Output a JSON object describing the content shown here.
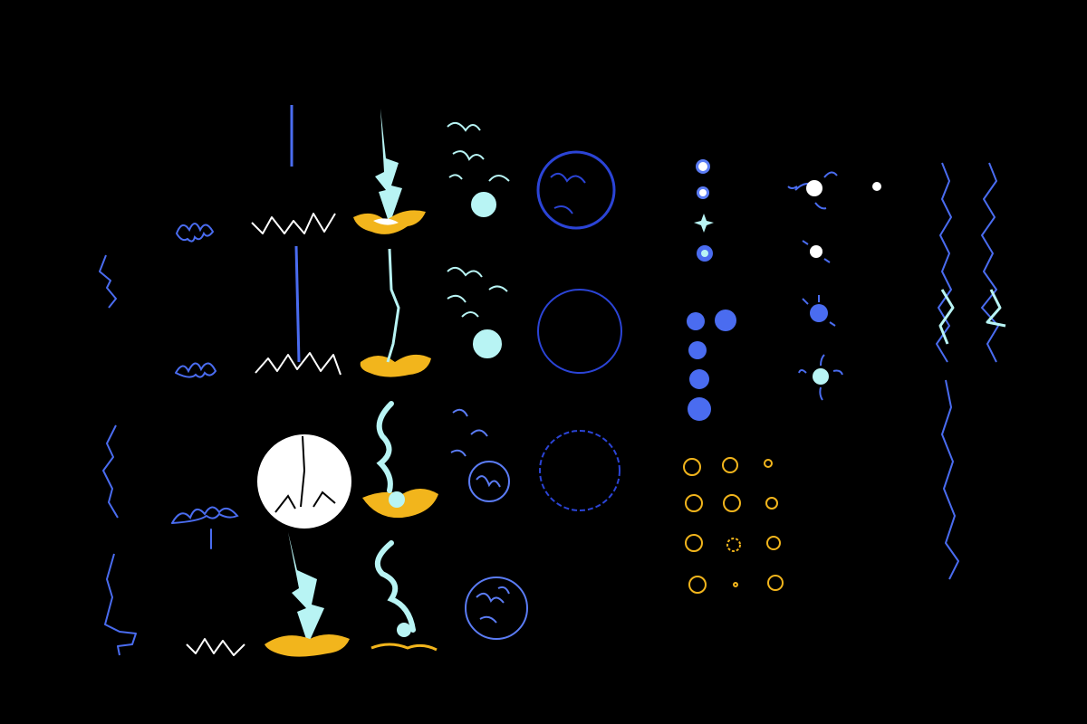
{
  "sheet": {
    "background": "#000000",
    "palette": {
      "bolt_blue": "#4a6cf0",
      "deep_blue": "#2b44d6",
      "cyan": "#b8f4f4",
      "white": "#ffffff",
      "gold": "#f2b51c",
      "orb_blue": "#5b7cf5"
    },
    "sprite_groups": [
      {
        "name": "side-bolt-frames",
        "frames": 3
      },
      {
        "name": "spark-squiggle-frames",
        "frames": 3
      },
      {
        "name": "ground-zigzag-frames",
        "frames": 3
      },
      {
        "name": "vertical-beam-frames",
        "frames": 2
      },
      {
        "name": "white-flash-disc",
        "frames": 1
      },
      {
        "name": "strike-bolt-frames",
        "frames": 2
      },
      {
        "name": "impact-splash-frames",
        "frames": 3
      },
      {
        "name": "orb-burst-frames",
        "frames": 4
      },
      {
        "name": "ring-frames",
        "frames": 3
      },
      {
        "name": "star-spark-frames",
        "frames": 4
      },
      {
        "name": "blue-bubble-frames",
        "frames": 5
      },
      {
        "name": "gold-ring-spark-frames",
        "frames": 12
      },
      {
        "name": "charged-orb-frames",
        "frames": 5
      },
      {
        "name": "chain-lightning-frames",
        "frames": 3
      }
    ]
  }
}
